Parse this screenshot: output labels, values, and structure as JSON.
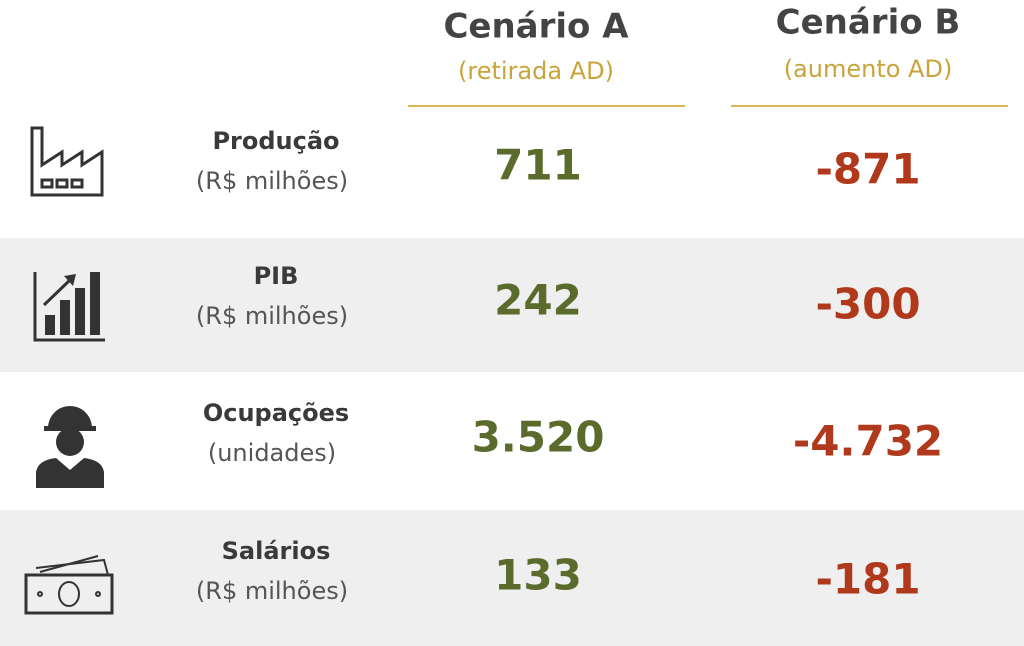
{
  "header": {
    "columns": [
      {
        "title": "Cenário A",
        "subtitle": "(retirada AD)"
      },
      {
        "title": "Cenário B",
        "subtitle": "(aumento AD)"
      }
    ]
  },
  "table": {
    "rows": [
      {
        "label": "Produção",
        "unit": "(R$ milhões)",
        "a": "711",
        "b": "-871"
      },
      {
        "label": "PIB",
        "unit": "(R$ milhões)",
        "a": "242",
        "b": "-300"
      },
      {
        "label": "Ocupações",
        "unit": "(unidades)",
        "a": "3.520",
        "b": "-4.732"
      },
      {
        "label": "Salários",
        "unit": "(R$ milhões)",
        "a": "133",
        "b": "-181"
      }
    ]
  }
}
